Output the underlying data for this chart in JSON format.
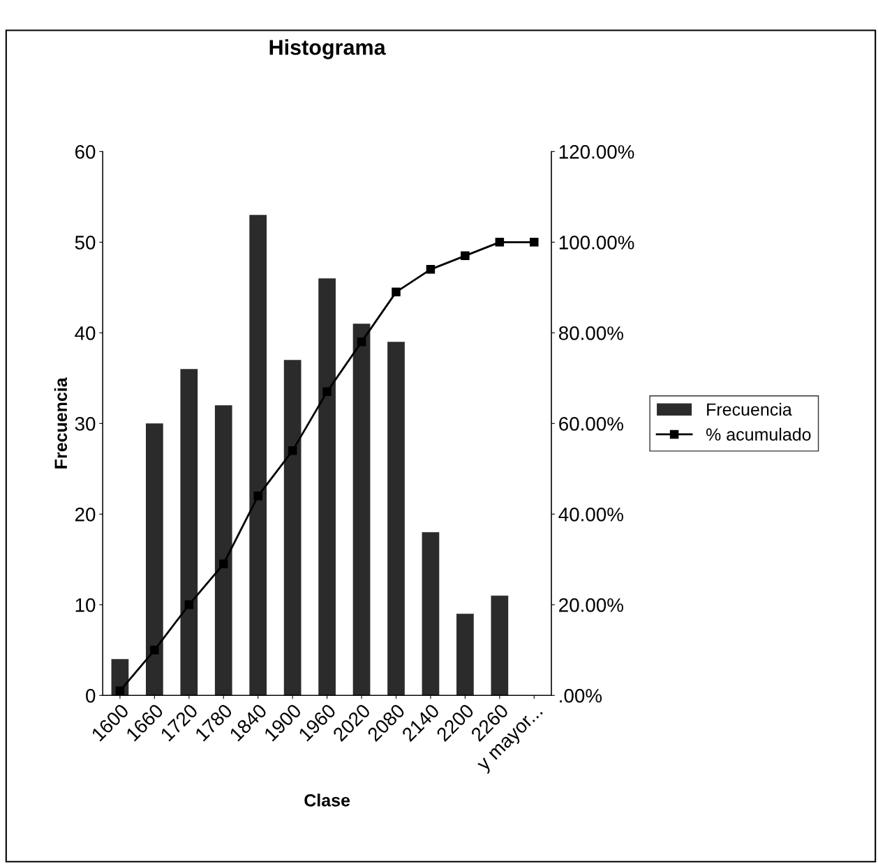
{
  "chart_data": {
    "type": "bar",
    "title": "Histograma",
    "xlabel": "Clase",
    "ylabel": "Frecuencia",
    "categories": [
      "1600",
      "1660",
      "1720",
      "1780",
      "1840",
      "1900",
      "1960",
      "2020",
      "2080",
      "2140",
      "2200",
      "2260",
      "y mayor..."
    ],
    "series": [
      {
        "name": "Frecuencia",
        "color": "#2b2b2b",
        "values": [
          4,
          30,
          36,
          32,
          53,
          37,
          46,
          41,
          39,
          18,
          9,
          11,
          0
        ]
      },
      {
        "name": "% acumulado",
        "type": "line",
        "axis": "y2",
        "color": "#000000",
        "marker": "square",
        "line_style": "solid",
        "values": [
          1,
          10,
          20,
          29,
          44,
          54,
          67,
          78,
          89,
          94,
          97,
          100,
          100
        ]
      }
    ],
    "ylim": [
      0,
      60
    ],
    "yticks": [
      0,
      10,
      20,
      30,
      40,
      50,
      60
    ],
    "y2lim": [
      0,
      120
    ],
    "y2ticks": [
      {
        "value": 0,
        "label": ".00%"
      },
      {
        "value": 20,
        "label": "20.00%"
      },
      {
        "value": 40,
        "label": "40.00%"
      },
      {
        "value": 60,
        "label": "60.00%"
      },
      {
        "value": 80,
        "label": "80.00%"
      },
      {
        "value": 100,
        "label": "100.00%"
      },
      {
        "value": 120,
        "label": "120.00%"
      }
    ],
    "grid": false,
    "legend": "right"
  }
}
